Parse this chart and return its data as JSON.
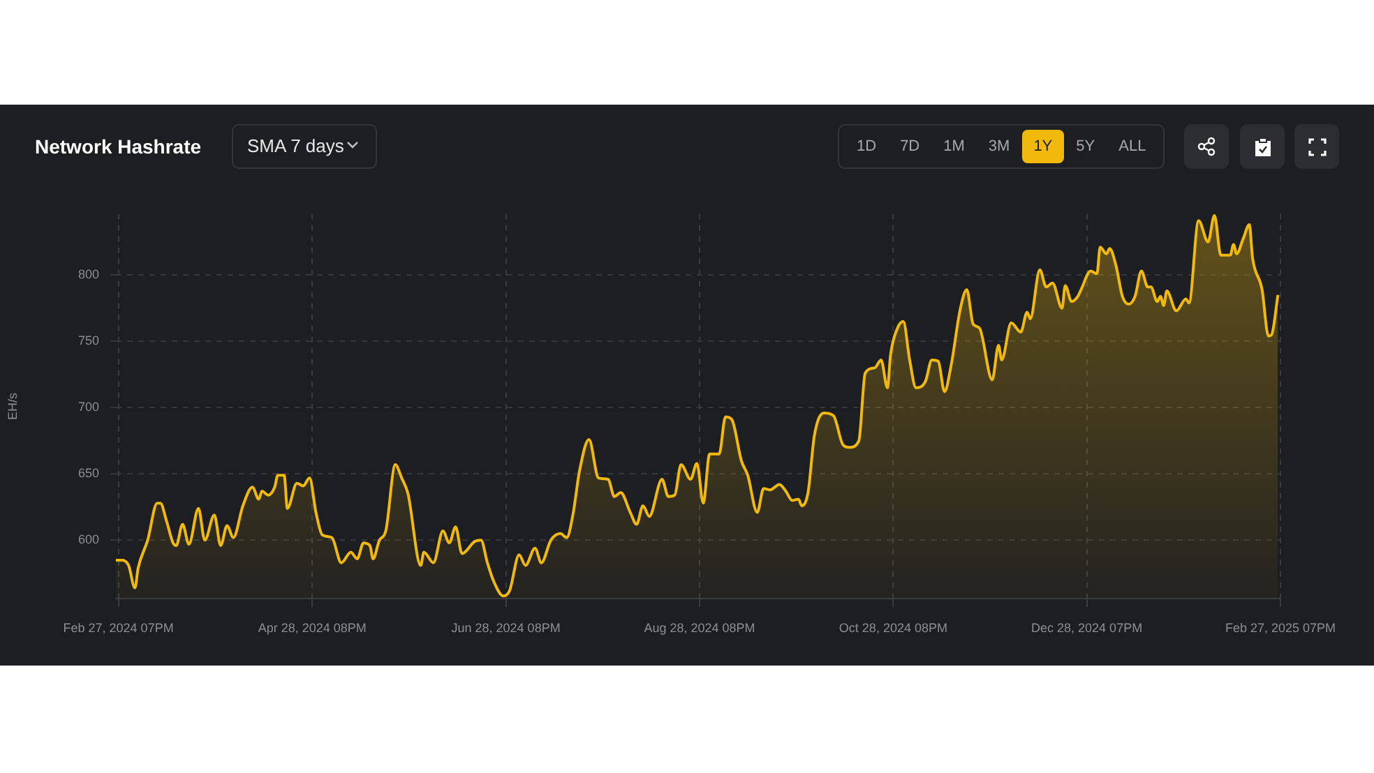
{
  "chart_data": {
    "type": "area",
    "title": "Network Hashrate",
    "subtitle": "SMA 7 days",
    "ylabel": "EH/s",
    "annotations": [
      "1D",
      "7D",
      "1M",
      "3M",
      "1Y",
      "5Y",
      "ALL"
    ],
    "x": [
      "2024-02-27",
      "2024-02-29",
      "2024-03-02",
      "2024-03-04",
      "2024-03-05",
      "2024-03-08",
      "2024-03-11",
      "2024-03-12",
      "2024-03-14",
      "2024-03-16",
      "2024-03-17",
      "2024-03-19",
      "2024-03-21",
      "2024-03-24",
      "2024-03-26",
      "2024-03-29",
      "2024-03-31",
      "2024-04-02",
      "2024-04-04",
      "2024-04-07",
      "2024-04-10",
      "2024-04-12",
      "2024-04-13",
      "2024-04-15",
      "2024-04-17",
      "2024-04-18",
      "2024-04-20",
      "2024-04-21",
      "2024-04-24",
      "2024-04-26",
      "2024-04-28",
      "2024-04-30",
      "2024-05-02",
      "2024-05-05",
      "2024-05-08",
      "2024-05-11",
      "2024-05-13",
      "2024-05-15",
      "2024-05-17",
      "2024-05-18",
      "2024-05-20",
      "2024-05-22",
      "2024-05-25",
      "2024-05-27",
      "2024-05-29",
      "2024-06-02",
      "2024-06-03",
      "2024-06-06",
      "2024-06-09",
      "2024-06-11",
      "2024-06-13",
      "2024-06-15",
      "2024-06-19",
      "2024-06-21",
      "2024-06-23",
      "2024-06-25",
      "2024-06-28",
      "2024-06-30",
      "2024-07-03",
      "2024-07-05",
      "2024-07-08",
      "2024-07-10",
      "2024-07-13",
      "2024-07-16",
      "2024-07-18",
      "2024-07-20",
      "2024-07-22",
      "2024-07-25",
      "2024-07-28",
      "2024-07-31",
      "2024-08-02",
      "2024-08-04",
      "2024-08-07",
      "2024-08-09",
      "2024-08-11",
      "2024-08-13",
      "2024-08-17",
      "2024-08-19",
      "2024-08-21",
      "2024-08-23",
      "2024-08-26",
      "2024-08-28",
      "2024-08-30",
      "2024-09-01",
      "2024-09-04",
      "2024-09-06",
      "2024-09-08",
      "2024-09-11",
      "2024-09-13",
      "2024-09-16",
      "2024-09-18",
      "2024-09-20",
      "2024-09-23",
      "2024-09-25",
      "2024-09-27",
      "2024-09-29",
      "2024-09-30",
      "2024-10-02",
      "2024-10-04",
      "2024-10-07",
      "2024-10-10",
      "2024-10-13",
      "2024-10-15",
      "2024-10-18",
      "2024-10-20",
      "2024-10-23",
      "2024-10-25",
      "2024-10-27",
      "2024-10-28",
      "2024-10-30",
      "2024-11-01",
      "2024-11-03",
      "2024-11-05",
      "2024-11-08",
      "2024-11-10",
      "2024-11-12",
      "2024-11-14",
      "2024-11-16",
      "2024-11-19",
      "2024-11-21",
      "2024-11-23",
      "2024-11-25",
      "2024-11-29",
      "2024-12-01",
      "2024-12-02",
      "2024-12-05",
      "2024-12-08",
      "2024-12-10",
      "2024-12-11",
      "2024-12-14",
      "2024-12-16",
      "2024-12-18",
      "2024-12-21",
      "2024-12-22",
      "2024-12-24",
      "2024-12-26",
      "2024-12-27",
      "2024-12-30",
      "2025-01-01",
      "2025-01-02",
      "2025-01-04",
      "2025-01-05",
      "2025-01-07",
      "2025-01-09",
      "2025-01-11",
      "2025-01-13",
      "2025-01-15",
      "2025-01-17",
      "2025-01-18",
      "2025-01-20",
      "2025-01-21",
      "2025-01-22",
      "2025-01-23",
      "2025-01-26",
      "2025-01-29",
      "2025-01-30",
      "2025-02-02",
      "2025-02-05",
      "2025-02-07",
      "2025-02-09",
      "2025-02-12",
      "2025-02-13",
      "2025-02-14",
      "2025-02-16",
      "2025-02-18",
      "2025-02-19",
      "2025-02-22",
      "2025-02-24",
      "2025-02-25",
      "2025-02-27"
    ],
    "series": [
      {
        "color": "#f0b90b",
        "values": [
          585,
          585,
          581,
          564,
          579,
          600,
          628,
          628,
          614,
          598,
          596,
          612,
          597,
          624,
          600,
          619,
          596,
          611,
          602,
          626,
          640,
          631,
          637,
          634,
          640,
          649,
          649,
          624,
          643,
          641,
          647,
          621,
          604,
          602,
          583,
          591,
          586,
          598,
          596,
          586,
          600,
          607,
          657,
          647,
          635,
          581,
          591,
          583,
          607,
          598,
          610,
          590,
          599,
          600,
          583,
          569,
          558,
          562,
          589,
          581,
          594,
          583,
          600,
          605,
          602,
          620,
          652,
          676,
          647,
          646,
          633,
          636,
          621,
          612,
          626,
          618,
          646,
          633,
          634,
          657,
          646,
          658,
          628,
          665,
          665,
          693,
          691,
          660,
          649,
          621,
          639,
          638,
          642,
          637,
          630,
          631,
          626,
          636,
          679,
          696,
          694,
          672,
          670,
          675,
          726,
          730,
          736,
          715,
          740,
          759,
          765,
          736,
          715,
          720,
          736,
          735,
          712,
          731,
          775,
          789,
          763,
          760,
          721,
          747,
          736,
          764,
          757,
          772,
          767,
          804,
          791,
          794,
          775,
          792,
          780,
          784,
          789,
          803,
          801,
          821,
          816,
          820,
          807,
          784,
          778,
          784,
          803,
          791,
          791,
          780,
          784,
          777,
          788,
          773,
          782,
          779,
          841,
          825,
          845,
          815,
          815,
          823,
          816,
          827,
          838,
          813,
          789,
          754,
          755,
          785
        ]
      }
    ],
    "xlim": [
      "2024-02-27",
      "2025-02-27T19:00"
    ],
    "xticks": [
      {
        "value": "2024-02-27T19:00",
        "label": "Feb 27, 2024 07PM"
      },
      {
        "value": "2024-04-28T20:00",
        "label": "Apr 28, 2024 08PM"
      },
      {
        "value": "2024-06-28T20:00",
        "label": "Jun 28, 2024 08PM"
      },
      {
        "value": "2024-08-28T20:00",
        "label": "Aug 28, 2024 08PM"
      },
      {
        "value": "2024-10-28T20:00",
        "label": "Oct 28, 2024 08PM"
      },
      {
        "value": "2024-12-28T19:00",
        "label": "Dec 28, 2024 07PM"
      },
      {
        "value": "2025-02-27T19:00",
        "label": "Feb 27, 2025 07PM"
      }
    ],
    "ylim": [
      556,
      846
    ],
    "yticks": [
      600,
      650,
      700,
      750,
      800
    ],
    "grid": true,
    "legend": false,
    "marker": "none",
    "line_style": "solid"
  }
}
